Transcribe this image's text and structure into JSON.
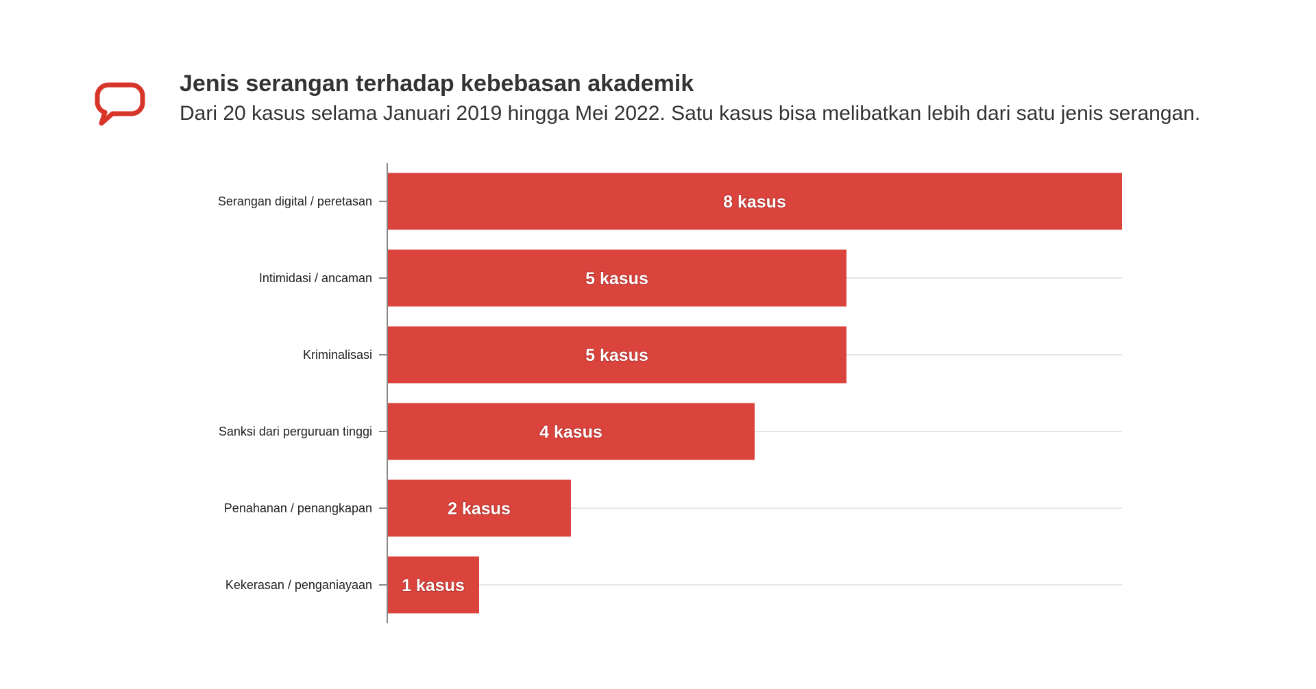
{
  "title": "Jenis serangan terhadap kebebasan akademik",
  "subtitle": "Dari 20 kasus selama Januari 2019 hingga Mei 2022. Satu kasus bisa melibatkan lebih dari satu jenis serangan.",
  "logo_icon": "speech-bubble-icon",
  "colors": {
    "bar": "#db443d",
    "grid": "#e6e6e6",
    "axis": "#888888",
    "logo": "#d8352a"
  },
  "chart_data": {
    "type": "bar",
    "orientation": "horizontal",
    "categories": [
      "Serangan digital / peretasan",
      "Intimidasi / ancaman",
      "Kriminalisasi",
      "Sanksi dari perguruan tinggi",
      "Penahanan / penangkapan",
      "Kekerasan / penganiayaan"
    ],
    "values": [
      8,
      5,
      5,
      4,
      2,
      1
    ],
    "data_labels": [
      "8 kasus",
      "5 kasus",
      "5 kasus",
      "4 kasus",
      "2 kasus",
      "1 kasus"
    ],
    "xlim": [
      0,
      8
    ],
    "grid": true,
    "legend": "none",
    "title": "Jenis serangan terhadap kebebasan akademik",
    "subtitle": "Dari 20 kasus selama Januari 2019 hingga Mei 2022. Satu kasus bisa melibatkan lebih dari satu jenis serangan.",
    "xlabel": "",
    "ylabel": ""
  }
}
